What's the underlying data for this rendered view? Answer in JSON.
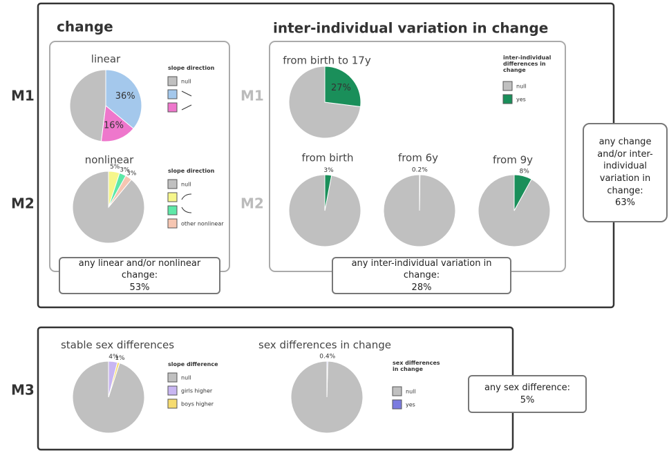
{
  "sections": {
    "change": "change",
    "variation": "inter-individual variation in change"
  },
  "row_labels": [
    "M1",
    "M2",
    "M1",
    "M2",
    "M3"
  ],
  "summaries": [
    {
      "text": "any linear and/or nonlinear change:",
      "value": "53%"
    },
    {
      "text": "any inter-individual variation in change:",
      "value": "28%"
    },
    {
      "text": "any change and/or inter-individual variation in change:",
      "value": "63%"
    },
    {
      "text": "any sex difference:",
      "value": "5%"
    }
  ],
  "chart_data": [
    {
      "type": "pie",
      "title": "linear",
      "legend_title": "slope direction",
      "categories": [
        "null",
        null,
        null
      ],
      "values": [
        48,
        36,
        16
      ],
      "value_labels": [
        null,
        "36%",
        "16%"
      ],
      "colors": [
        "#c0c0c0",
        "#a4c8ec",
        "#ee77cc"
      ]
    },
    {
      "type": "pie",
      "title": "nonlinear",
      "legend_title": "slope direction",
      "categories": [
        "null",
        null,
        null,
        "other nonlinear"
      ],
      "values": [
        89,
        5,
        3,
        3
      ],
      "value_labels": [
        null,
        "5%",
        "3%",
        "3%"
      ],
      "colors": [
        "#c0c0c0",
        "#f6f68c",
        "#5ee8a8",
        "#f6c6b2"
      ]
    },
    {
      "type": "pie",
      "title": "from birth to 17y",
      "legend_title": "inter-individual differences in change",
      "categories": [
        "null",
        "yes"
      ],
      "values": [
        73,
        27
      ],
      "value_labels": [
        null,
        "27%"
      ],
      "colors": [
        "#c0c0c0",
        "#1a8f5a"
      ]
    },
    {
      "type": "pie",
      "title": "from birth",
      "values": [
        97,
        3
      ],
      "value_labels": [
        null,
        "3%"
      ],
      "colors": [
        "#c0c0c0",
        "#1a8f5a"
      ]
    },
    {
      "type": "pie",
      "title": "from 6y",
      "values": [
        99.8,
        0.2
      ],
      "value_labels": [
        null,
        "0.2%"
      ],
      "colors": [
        "#c0c0c0",
        "#1a8f5a"
      ]
    },
    {
      "type": "pie",
      "title": "from 9y",
      "values": [
        92,
        8
      ],
      "value_labels": [
        null,
        "8%"
      ],
      "colors": [
        "#c0c0c0",
        "#1a8f5a"
      ]
    },
    {
      "type": "pie",
      "title": "stable sex differences",
      "legend_title": "slope difference",
      "categories": [
        "null",
        "girls higher",
        "boys higher"
      ],
      "values": [
        95,
        4,
        1
      ],
      "value_labels": [
        null,
        "4%",
        "1%"
      ],
      "colors": [
        "#c0c0c0",
        "#c8b6f2",
        "#f6dc70"
      ]
    },
    {
      "type": "pie",
      "title": "sex differences in change",
      "legend_title": "sex differences in change",
      "categories": [
        "null",
        "yes"
      ],
      "values": [
        99.6,
        0.4
      ],
      "value_labels": [
        null,
        "0.4%"
      ],
      "colors": [
        "#c0c0c0",
        "#7b7be0"
      ]
    }
  ]
}
